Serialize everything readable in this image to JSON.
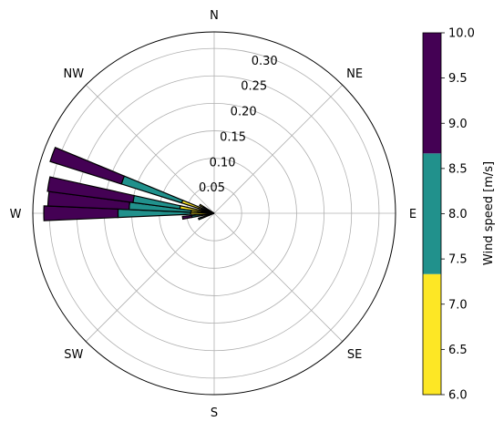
{
  "chart_data": {
    "type": "polar_stacked_bar",
    "title": "",
    "direction_labels": [
      "N",
      "NE",
      "E",
      "SE",
      "S",
      "SW",
      "W",
      "NW"
    ],
    "radial_ticks": [
      0.05,
      0.1,
      0.15,
      0.2,
      0.25,
      0.3
    ],
    "radial_tick_labels": [
      "0.05",
      "0.10",
      "0.15",
      "0.20",
      "0.25",
      "0.30"
    ],
    "rlim": [
      0,
      0.33
    ],
    "grid": true,
    "bar_angular_width_deg": 5,
    "speed_bins": [
      "6.0-7.33",
      "7.33-8.67",
      "8.67-10.0"
    ],
    "bin_colors": [
      "#fde725",
      "#21918c",
      "#440154"
    ],
    "bars": [
      {
        "direction_deg": 270,
        "segments": [
          0.043,
          0.132,
          0.135
        ]
      },
      {
        "direction_deg": 275,
        "segments": [
          0.042,
          0.113,
          0.148
        ]
      },
      {
        "direction_deg": 280,
        "segments": [
          0.063,
          0.086,
          0.157
        ]
      },
      {
        "direction_deg": 290,
        "segments": [
          0.062,
          0.115,
          0.136
        ]
      },
      {
        "direction_deg": 262,
        "segments": [
          0.006,
          0.035,
          0.017
        ]
      },
      {
        "direction_deg": 250,
        "segments": [
          0.01,
          0.02,
          0.0
        ]
      },
      {
        "direction_deg": 300,
        "segments": [
          0.03,
          0.0,
          0.0
        ]
      }
    ],
    "colorbar": {
      "label": "Wind speed [m/s]",
      "min": 6.0,
      "max": 10.0,
      "ticks": [
        6.0,
        6.5,
        7.0,
        7.5,
        8.0,
        8.5,
        9.0,
        9.5,
        10.0
      ],
      "tick_labels": [
        "6.0",
        "6.5",
        "7.0",
        "7.5",
        "8.0",
        "8.5",
        "9.0",
        "9.5",
        "10.0"
      ],
      "bands": [
        {
          "from": 6.0,
          "to": 7.333,
          "color": "#fde725"
        },
        {
          "from": 7.333,
          "to": 8.667,
          "color": "#21918c"
        },
        {
          "from": 8.667,
          "to": 10.0,
          "color": "#440154"
        }
      ]
    }
  }
}
